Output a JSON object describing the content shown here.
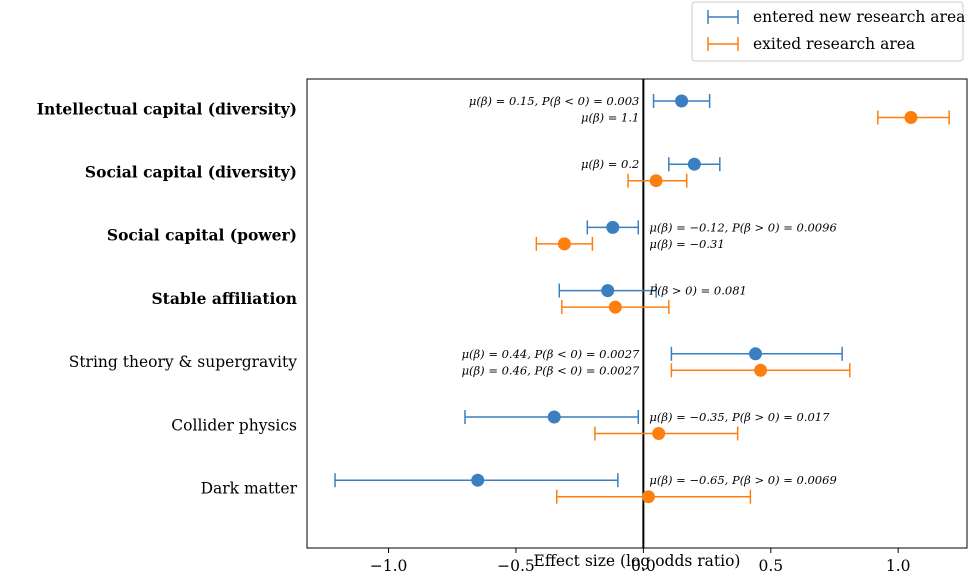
{
  "chart_data": {
    "type": "scatter",
    "subtype": "point-with-error-bars (forest plot)",
    "xlabel": "Effect size (log odds ratio)",
    "xlim": [
      -1.32,
      1.27
    ],
    "xticks": [
      {
        "value": -1.0,
        "label": "−1.0"
      },
      {
        "value": -0.5,
        "label": "−0.5"
      },
      {
        "value": 0.0,
        "label": "0.0"
      },
      {
        "value": 0.5,
        "label": "0.5"
      },
      {
        "value": 1.0,
        "label": "1.0"
      }
    ],
    "reference_line_x": 0,
    "grid": false,
    "legend_position": "top-right (above plot)",
    "categories": [
      {
        "label": "Intellectual capital (diversity)",
        "bold": true
      },
      {
        "label": "Social capital (diversity)",
        "bold": true
      },
      {
        "label": "Social capital (power)",
        "bold": true
      },
      {
        "label": "Stable affiliation",
        "bold": true
      },
      {
        "label": "String theory & supergravity",
        "bold": false
      },
      {
        "label": "Collider physics",
        "bold": false
      },
      {
        "label": "Dark matter",
        "bold": false
      }
    ],
    "series": [
      {
        "name": "entered new research area",
        "color": "#3a7fbf",
        "points": [
          {
            "mean": 0.15,
            "low": 0.04,
            "high": 0.26
          },
          {
            "mean": 0.2,
            "low": 0.1,
            "high": 0.3
          },
          {
            "mean": -0.12,
            "low": -0.22,
            "high": -0.02
          },
          {
            "mean": -0.14,
            "low": -0.33,
            "high": 0.05
          },
          {
            "mean": 0.44,
            "low": 0.11,
            "high": 0.78
          },
          {
            "mean": -0.35,
            "low": -0.7,
            "high": -0.02
          },
          {
            "mean": -0.65,
            "low": -1.21,
            "high": -0.1
          }
        ]
      },
      {
        "name": "exited research area",
        "color": "#ff7f0e",
        "points": [
          {
            "mean": 1.05,
            "low": 0.92,
            "high": 1.2
          },
          {
            "mean": 0.05,
            "low": -0.06,
            "high": 0.17
          },
          {
            "mean": -0.31,
            "low": -0.42,
            "high": -0.2
          },
          {
            "mean": -0.11,
            "low": -0.32,
            "high": 0.1
          },
          {
            "mean": 0.46,
            "low": 0.11,
            "high": 0.81
          },
          {
            "mean": 0.06,
            "low": -0.19,
            "high": 0.37
          },
          {
            "mean": 0.02,
            "low": -0.34,
            "high": 0.42
          }
        ]
      }
    ],
    "annotations": [
      {
        "category": 0,
        "series": 0,
        "text": "μ(β) = 0.15, P(β < 0) = 0.003",
        "side": "left"
      },
      {
        "category": 0,
        "series": 1,
        "text": "μ(β) = 1.1",
        "side": "left"
      },
      {
        "category": 1,
        "series": 0,
        "text": "μ(β) = 0.2",
        "side": "left"
      },
      {
        "category": 2,
        "series": 0,
        "text": "μ(β) = −0.12, P(β > 0) = 0.0096",
        "side": "right"
      },
      {
        "category": 2,
        "series": 1,
        "text": "μ(β) = −0.31",
        "side": "right"
      },
      {
        "category": 3,
        "series": 0,
        "text": "P(β > 0) = 0.081",
        "side": "right"
      },
      {
        "category": 4,
        "series": 0,
        "text": "μ(β) = 0.44, P(β < 0) = 0.0027",
        "side": "left"
      },
      {
        "category": 4,
        "series": 1,
        "text": "μ(β) = 0.46, P(β < 0) = 0.0027",
        "side": "left"
      },
      {
        "category": 5,
        "series": 0,
        "text": "μ(β) = −0.35, P(β > 0) = 0.017",
        "side": "right"
      },
      {
        "category": 6,
        "series": 0,
        "text": "μ(β) = −0.65, P(β > 0) = 0.0069",
        "side": "right"
      }
    ]
  }
}
